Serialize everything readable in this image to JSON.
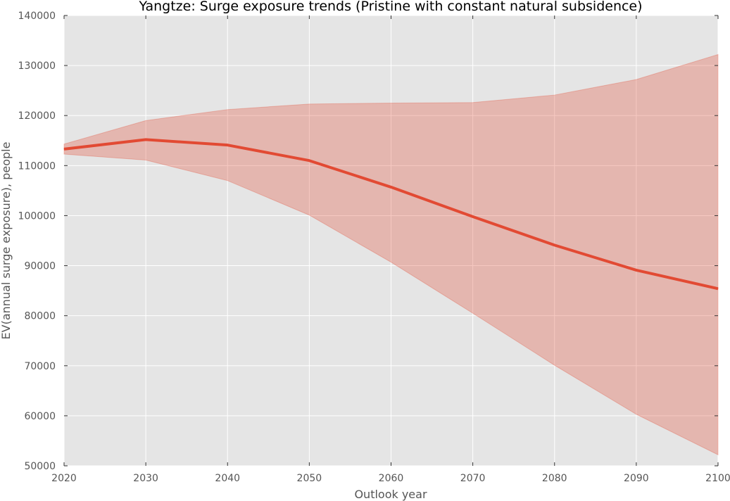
{
  "chart_data": {
    "type": "line",
    "title": "Yangtze: Surge exposure trends (Pristine with constant natural subsidence)",
    "xlabel": "Outlook year",
    "ylabel": "EV(annual surge exposure), people",
    "xlim": [
      2020,
      2100
    ],
    "ylim": [
      50000,
      140000
    ],
    "x": [
      2020,
      2030,
      2040,
      2050,
      2060,
      2070,
      2080,
      2090,
      2100
    ],
    "x_ticks": [
      "2020",
      "2030",
      "2040",
      "2050",
      "2060",
      "2070",
      "2080",
      "2090",
      "2100"
    ],
    "y_ticks": [
      "50000",
      "60000",
      "70000",
      "80000",
      "90000",
      "100000",
      "110000",
      "120000",
      "130000",
      "140000"
    ],
    "grid": true,
    "series": [
      {
        "values": [
          113300,
          115200,
          114100,
          111000,
          105700,
          99800,
          94100,
          89100,
          85400
        ],
        "band_upper": [
          114300,
          119000,
          121200,
          122300,
          122500,
          122600,
          124100,
          127200,
          132200
        ],
        "band_lower": [
          112300,
          111100,
          107000,
          100100,
          90700,
          80500,
          70100,
          60300,
          52200
        ],
        "color": "#e24a33",
        "band_color": "#e24a33"
      }
    ],
    "colors": {
      "plot_background": "#e5e5e5",
      "grid": "#ffffff",
      "tick_text": "#555555"
    }
  }
}
